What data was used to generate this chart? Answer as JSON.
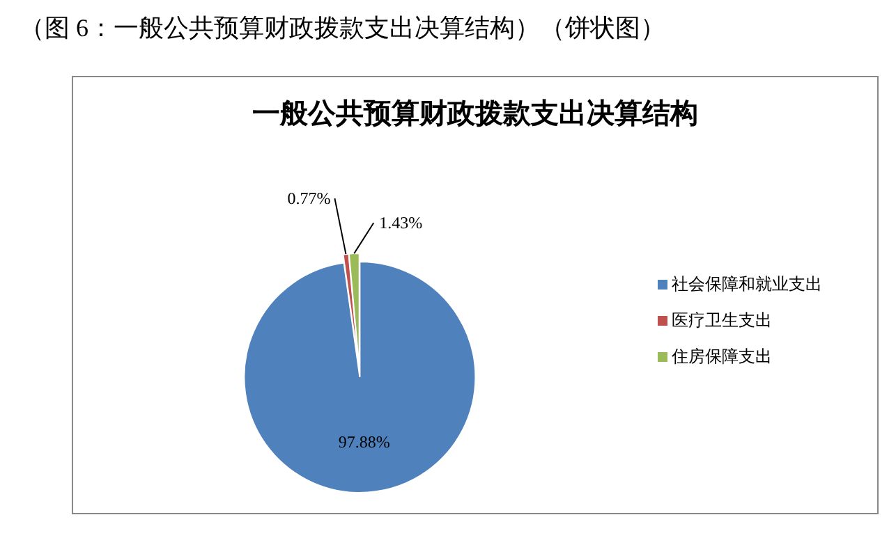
{
  "chart_data": {
    "type": "pie",
    "title": "一般公共预算财政拨款支出决算结构",
    "annotations": [
      "（图 6：一般公共预算财政拨款支出决算结构）（饼状图）"
    ],
    "categories": [
      "社会保障和就业支出",
      "医疗卫生支出",
      "住房保障支出"
    ],
    "values": [
      97.88,
      0.77,
      1.43
    ],
    "colors": [
      "#4f81bd",
      "#c0504d",
      "#9bbb59"
    ],
    "value_labels": [
      "97.88%",
      "0.77%",
      "1.43%"
    ],
    "legend": "right"
  }
}
